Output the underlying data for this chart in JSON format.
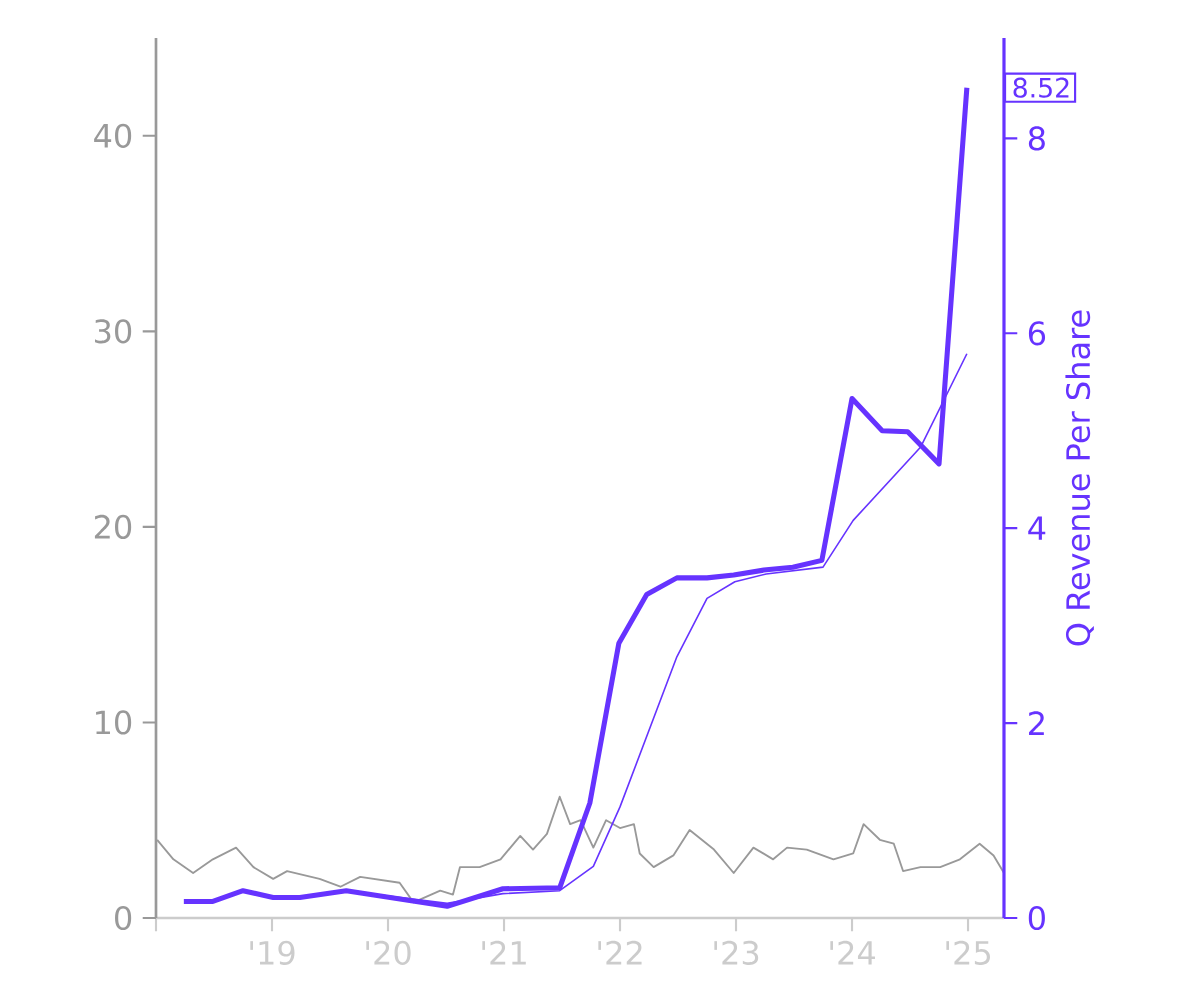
{
  "chart_data": {
    "type": "line",
    "y2label": "Q Revenue Per Share",
    "xlim": [
      2018.0,
      2025.31
    ],
    "xticks": [
      {
        "value": 2018,
        "label": null
      },
      {
        "value": 2019,
        "label": "'19"
      },
      {
        "value": 2020,
        "label": "'20"
      },
      {
        "value": 2021,
        "label": "'21"
      },
      {
        "value": 2022,
        "label": "'22"
      },
      {
        "value": 2023,
        "label": "'23"
      },
      {
        "value": 2024,
        "label": "'24"
      },
      {
        "value": 2025,
        "label": "'25"
      }
    ],
    "ylim": [
      0,
      45
    ],
    "yticks": [
      0,
      10,
      20,
      30,
      40
    ],
    "y2lim": [
      0,
      9.03
    ],
    "y2ticks": [
      0,
      2,
      4,
      6,
      8
    ],
    "grid": false,
    "series": [
      {
        "color": "#999999",
        "axis": "y",
        "x": [
          2018.01,
          2018.15,
          2018.32,
          2018.49,
          2018.69,
          2018.84,
          2019.01,
          2019.13,
          2019.41,
          2019.59,
          2019.76,
          2020.1,
          2020.22,
          2020.45,
          2020.56,
          2020.62,
          2020.79,
          2020.97,
          2021.14,
          2021.25,
          2021.37,
          2021.48,
          2021.57,
          2021.66,
          2021.77,
          2021.88,
          2022.0,
          2022.12,
          2022.17,
          2022.29,
          2022.46,
          2022.6,
          2022.81,
          2022.98,
          2023.15,
          2023.32,
          2023.44,
          2023.61,
          2023.84,
          2024.01,
          2024.1,
          2024.24,
          2024.36,
          2024.44,
          2024.59,
          2024.76,
          2024.93,
          2025.1,
          2025.22,
          2025.31
        ],
        "values": [
          4.0,
          3.0,
          2.3,
          3.0,
          3.6,
          2.6,
          2.0,
          2.4,
          2.0,
          1.6,
          2.1,
          1.8,
          0.8,
          1.4,
          1.2,
          2.6,
          2.6,
          3.0,
          4.2,
          3.5,
          4.3,
          6.2,
          4.8,
          5.0,
          3.6,
          5.0,
          4.6,
          4.8,
          3.3,
          2.6,
          3.2,
          4.5,
          3.5,
          2.3,
          3.6,
          3.0,
          3.6,
          3.5,
          3.0,
          3.3,
          4.8,
          4.0,
          3.8,
          2.4,
          2.6,
          2.6,
          3.0,
          3.8,
          3.2,
          2.3
        ]
      },
      {
        "color": "#6633ff",
        "axis": "y2",
        "x": [
          2018.24,
          2018.49,
          2018.75,
          2019.01,
          2019.24,
          2019.64,
          2020.51,
          2020.99,
          2021.48,
          2021.74,
          2021.99,
          2022.23,
          2022.49,
          2022.75,
          2022.98,
          2023.24,
          2023.49,
          2023.74,
          2024.0,
          2024.26,
          2024.48,
          2024.75,
          2024.99
        ],
        "values": [
          0.17,
          0.17,
          0.28,
          0.21,
          0.21,
          0.28,
          0.12,
          0.3,
          0.31,
          1.18,
          2.82,
          3.32,
          3.49,
          3.49,
          3.52,
          3.57,
          3.6,
          3.67,
          5.33,
          5.0,
          4.99,
          4.66,
          8.52
        ],
        "value_labels": [
          null,
          null,
          null,
          null,
          null,
          null,
          null,
          null,
          null,
          null,
          null,
          null,
          null,
          null,
          null,
          null,
          null,
          null,
          null,
          null,
          null,
          null,
          "8.52"
        ]
      },
      {
        "color": "#6633ff",
        "axis": "y2",
        "x": [
          2019.64,
          2020.51,
          2020.99,
          2021.48,
          2021.77,
          2022.0,
          2022.49,
          2022.75,
          2022.99,
          2023.26,
          2023.75,
          2024.01,
          2024.59,
          2024.99
        ],
        "values": [
          0.28,
          0.15,
          0.25,
          0.28,
          0.53,
          1.14,
          2.68,
          3.28,
          3.45,
          3.53,
          3.6,
          4.08,
          4.83,
          5.79
        ]
      }
    ]
  }
}
